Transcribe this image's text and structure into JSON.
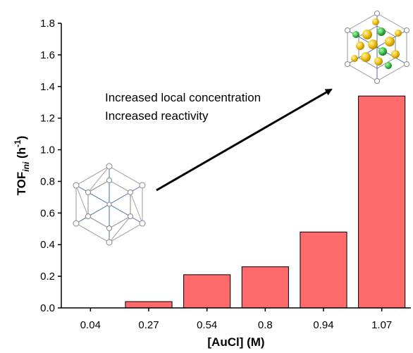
{
  "chart_data": {
    "type": "bar",
    "title": "",
    "xlabel": "[AuCl] (M)",
    "ylabel": "TOF",
    "ylabel_subscript": "ini",
    "ylabel_unit_open": " (h",
    "ylabel_unit_exp": "-1",
    "ylabel_unit_close": ")",
    "categories": [
      "0.04",
      "0.27",
      "0.54",
      "0.8",
      "0.94",
      "1.07"
    ],
    "values": [
      0.0,
      0.04,
      0.21,
      0.26,
      0.48,
      1.34
    ],
    "ylim": [
      0,
      1.8
    ],
    "yticks": [
      "0.0",
      "0.2",
      "0.4",
      "0.6",
      "0.8",
      "1.0",
      "1.2",
      "1.4",
      "1.6",
      "1.8"
    ],
    "grid": false,
    "bar_color": "#ff6b6b",
    "bar_edge_color": "#000000",
    "annotations": [
      "Increased local concentration",
      "Increased reactivity"
    ],
    "images": [
      "empty-cage-structure",
      "loaded-cage-structure"
    ]
  }
}
